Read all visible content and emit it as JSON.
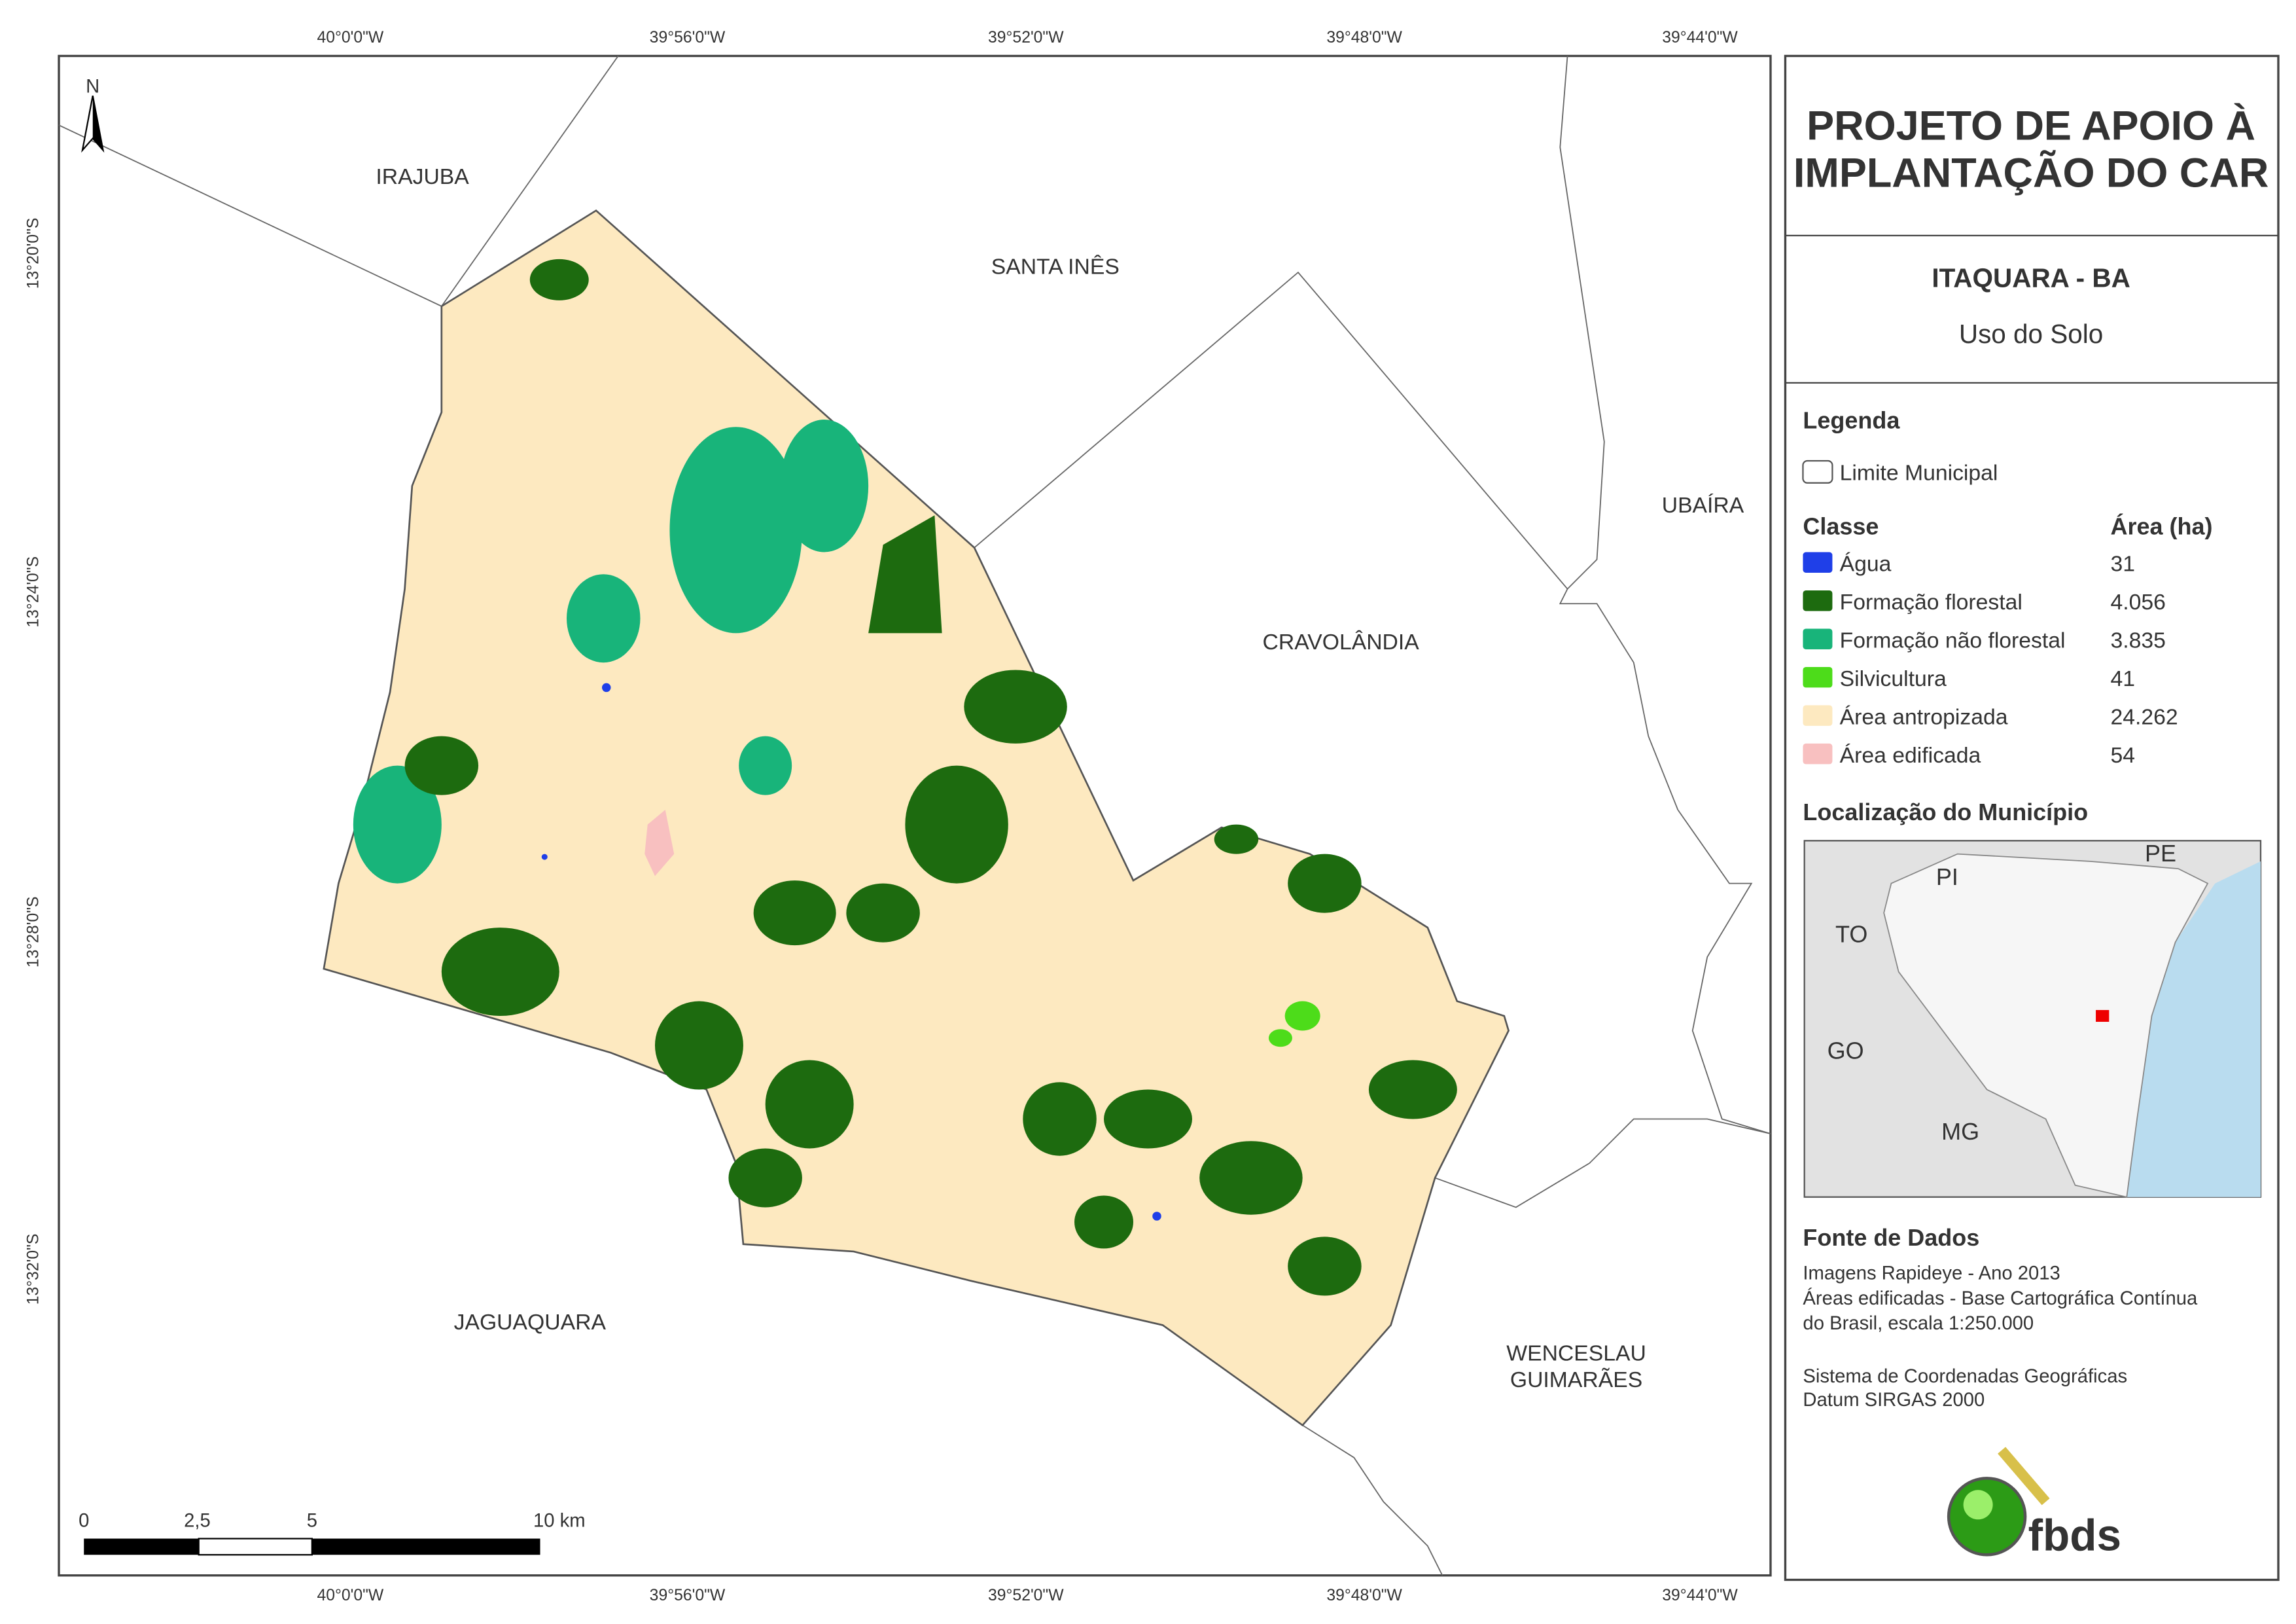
{
  "map": {
    "lon_labels": [
      "40°0'0\"W",
      "39°56'0\"W",
      "39°52'0\"W",
      "39°48'0\"W",
      "39°44'0\"W"
    ],
    "lat_labels": [
      "13°20'0\"S",
      "13°24'0\"S",
      "13°28'0\"S",
      "13°32'0\"S"
    ],
    "north": "N",
    "neighbors": [
      {
        "lines": [
          "IRAJUBA"
        ]
      },
      {
        "lines": [
          "SANTA INÊS"
        ]
      },
      {
        "lines": [
          "UBAÍRA"
        ]
      },
      {
        "lines": [
          "CRAVOLÂNDIA"
        ]
      },
      {
        "lines": [
          "JAGUAQUARA"
        ]
      },
      {
        "lines": [
          "WENCESLAU",
          "GUIMARÃES"
        ]
      }
    ],
    "scale": [
      "0",
      "2,5",
      "5",
      "10 km"
    ]
  },
  "panel": {
    "title": [
      "PROJETO DE APOIO À",
      "IMPLANTAÇÃO DO CAR"
    ],
    "place": "ITAQUARA - BA",
    "subtitle": "Uso do Solo",
    "legend_title": "Legenda",
    "boundary": "Limite Municipal",
    "class_header": "Classe",
    "area_header": "Área (ha)",
    "classes": [
      {
        "name": "Água",
        "area": "31",
        "color": "#1f3fe8"
      },
      {
        "name": "Formação florestal",
        "area": "4.056",
        "color": "#1d6b0f"
      },
      {
        "name": "Formação não florestal",
        "area": "3.835",
        "color": "#18b47a"
      },
      {
        "name": "Silvicultura",
        "area": "41",
        "color": "#4ddc1a"
      },
      {
        "name": "Área antropizada",
        "area": "24.262",
        "color": "#fde9c0"
      },
      {
        "name": "Área edificada",
        "area": "54",
        "color": "#f8c0c0"
      }
    ],
    "location_title": "Localização do Município",
    "states": [
      "PI",
      "PE",
      "TO",
      "GO",
      "MG"
    ],
    "source_title": "Fonte de Dados",
    "source": [
      "Imagens Rapideye - Ano 2013",
      "Áreas edificadas - Base Cartográfica Contínua",
      "do Brasil, escala 1:250.000",
      "Sistema de Coordenadas Geográficas",
      "Datum SIRGAS 2000"
    ],
    "logo": "fbds"
  }
}
